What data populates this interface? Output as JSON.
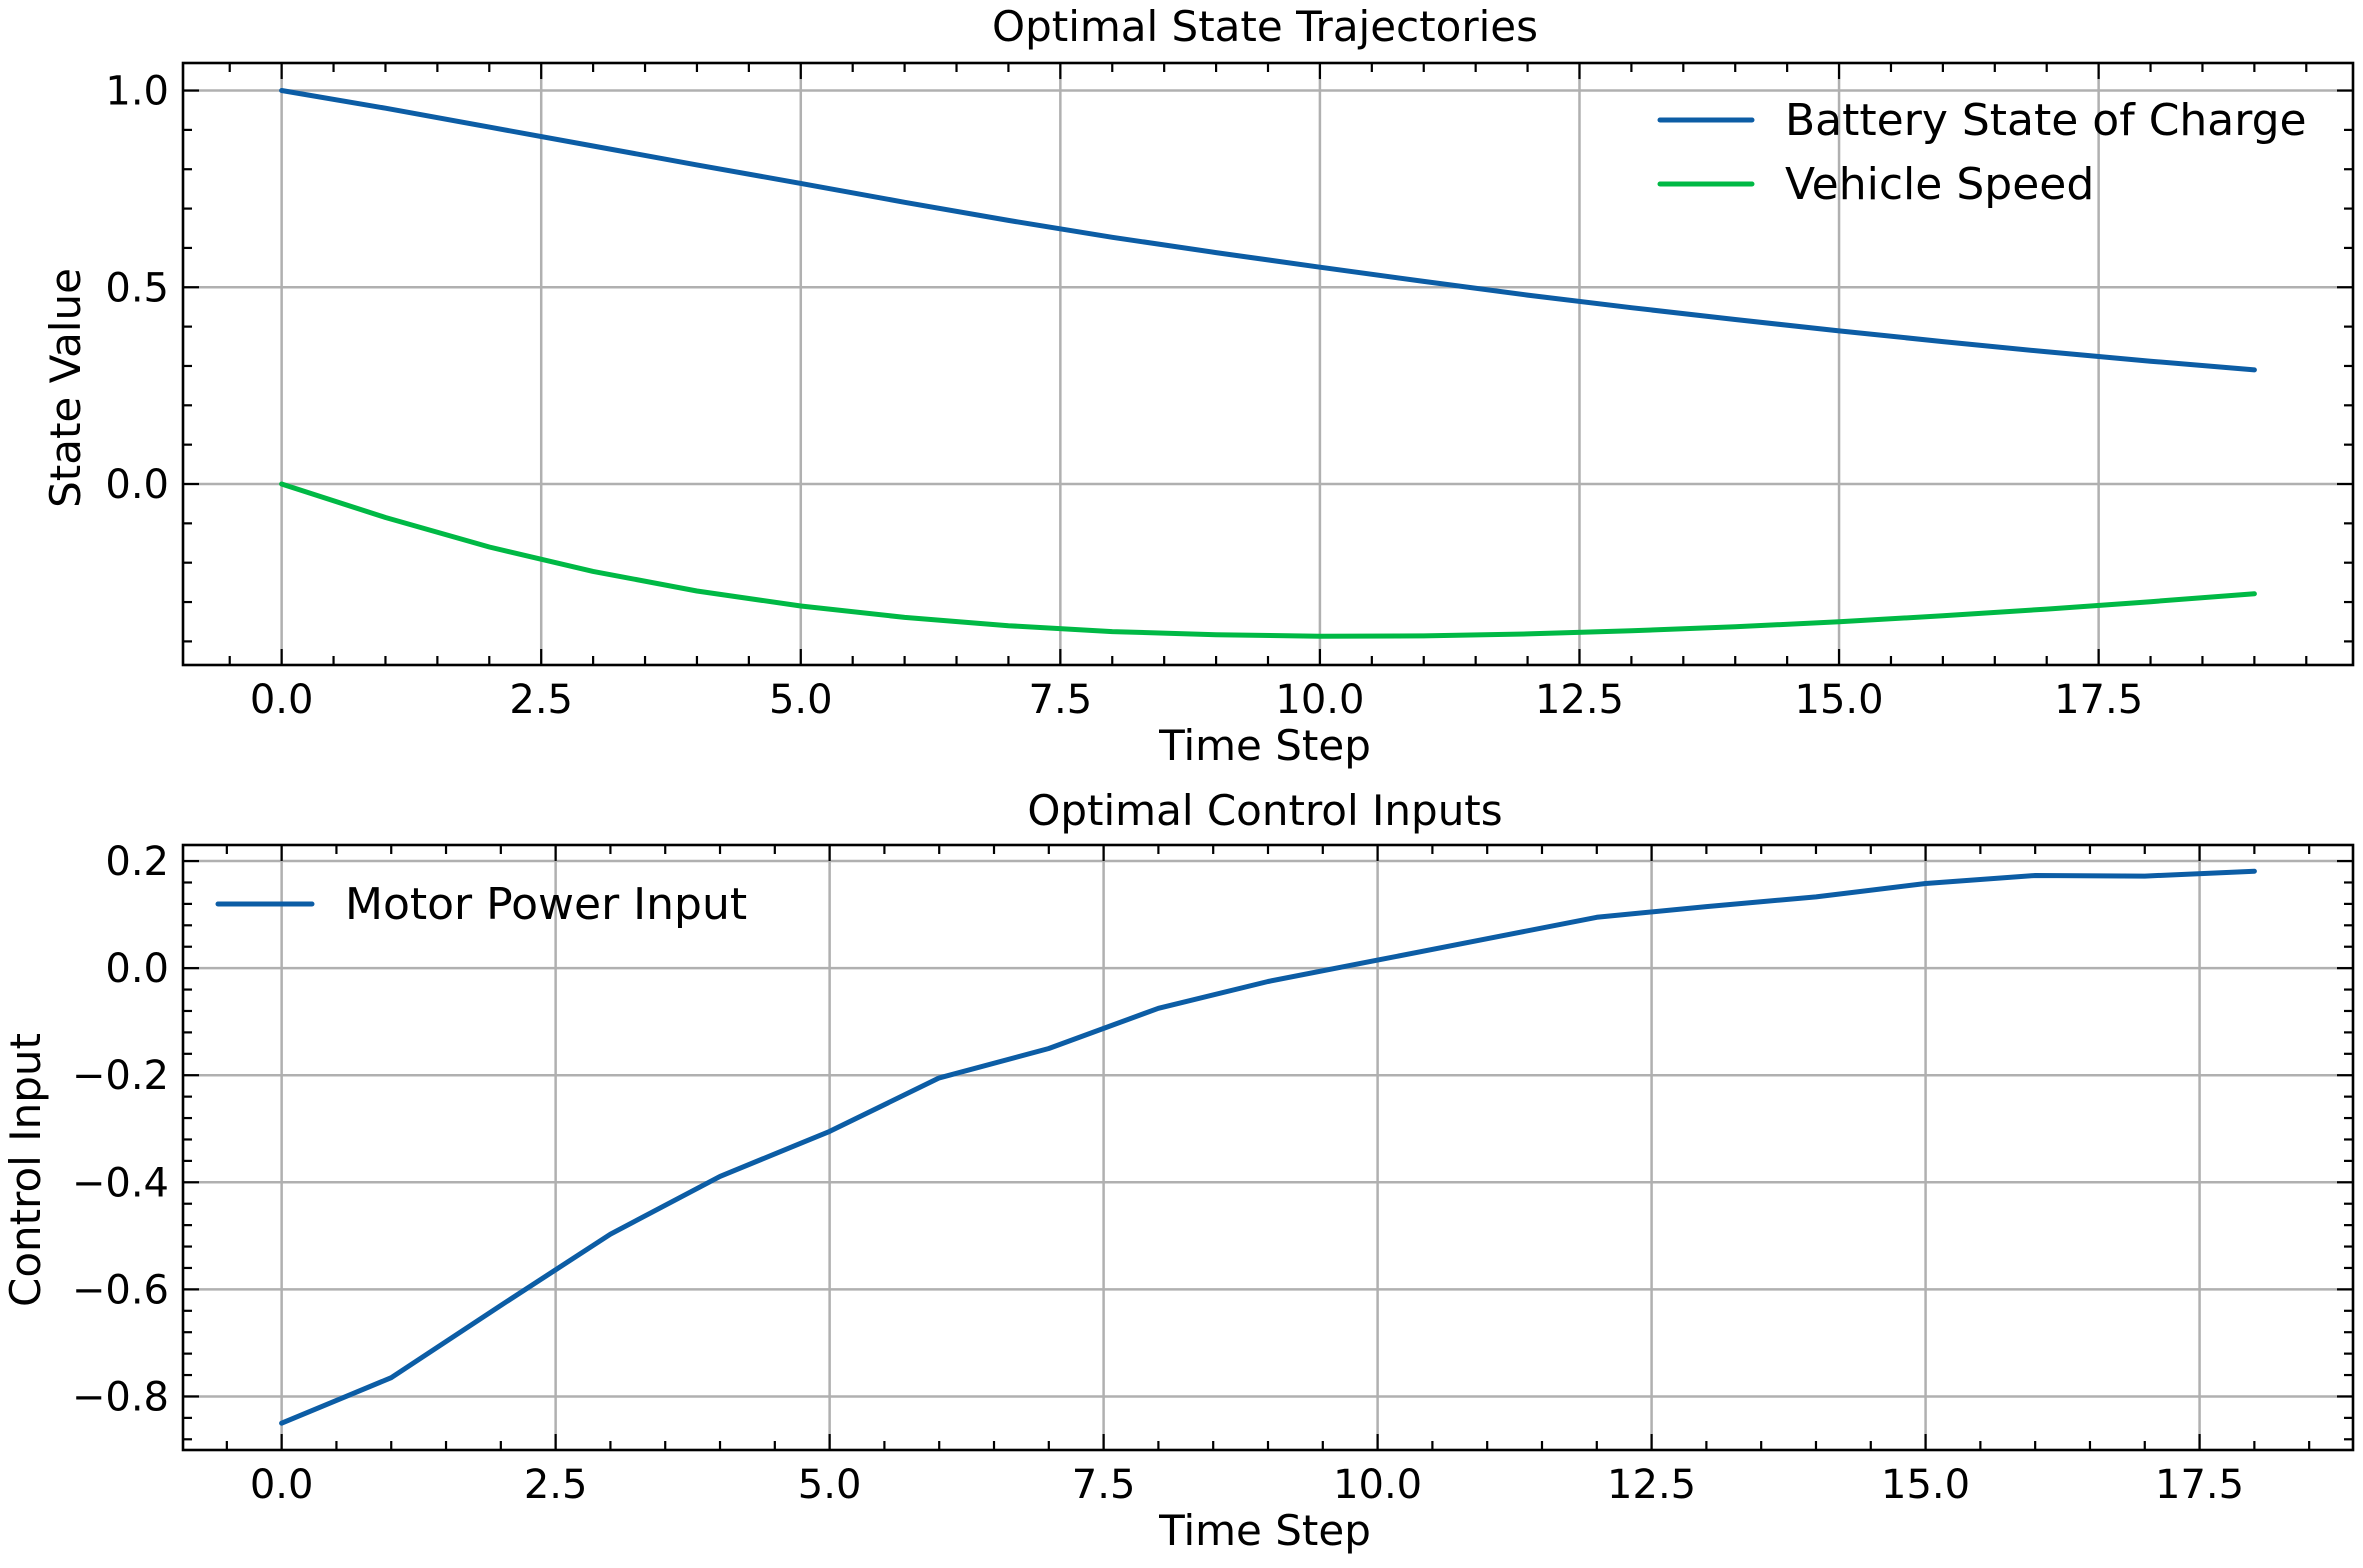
{
  "chart_data": [
    {
      "type": "line",
      "title": "Optimal State Trajectories",
      "xlabel": "Time Step",
      "ylabel": "State Value",
      "xlim": [
        -0.95,
        19.95
      ],
      "ylim": [
        -0.46,
        1.07
      ],
      "xticks": [
        0.0,
        2.5,
        5.0,
        7.5,
        10.0,
        12.5,
        15.0,
        17.5
      ],
      "xtick_labels": [
        "0.0",
        "2.5",
        "5.0",
        "7.5",
        "10.0",
        "12.5",
        "15.0",
        "17.5"
      ],
      "yticks": [
        0.0,
        0.5,
        1.0
      ],
      "ytick_labels": [
        "0.0",
        "0.5",
        "1.0"
      ],
      "grid": true,
      "legend_position": "top-right",
      "x": [
        0,
        1,
        2,
        3,
        4,
        5,
        6,
        7,
        8,
        9,
        10,
        11,
        12,
        13,
        14,
        15,
        16,
        17,
        18,
        19
      ],
      "series": [
        {
          "name": "Battery State of Charge",
          "color": "#0C5DA5",
          "values": [
            1.0,
            0.955,
            0.907,
            0.859,
            0.811,
            0.764,
            0.716,
            0.67,
            0.627,
            0.588,
            0.551,
            0.515,
            0.48,
            0.448,
            0.418,
            0.389,
            0.362,
            0.336,
            0.312,
            0.29
          ]
        },
        {
          "name": "Vehicle Speed",
          "color": "#00B945",
          "values": [
            0.0,
            -0.085,
            -0.16,
            -0.222,
            -0.272,
            -0.31,
            -0.339,
            -0.36,
            -0.375,
            -0.383,
            -0.387,
            -0.386,
            -0.381,
            -0.373,
            -0.363,
            -0.35,
            -0.335,
            -0.318,
            -0.299,
            -0.279
          ]
        }
      ]
    },
    {
      "type": "line",
      "title": "Optimal Control Inputs",
      "xlabel": "Time Step",
      "ylabel": "Control Input",
      "xlim": [
        -0.9,
        18.9
      ],
      "ylim": [
        -0.9,
        0.23
      ],
      "xticks": [
        0.0,
        2.5,
        5.0,
        7.5,
        10.0,
        12.5,
        15.0,
        17.5
      ],
      "xtick_labels": [
        "0.0",
        "2.5",
        "5.0",
        "7.5",
        "10.0",
        "12.5",
        "15.0",
        "17.5"
      ],
      "yticks": [
        -0.8,
        -0.6,
        -0.4,
        -0.2,
        0.0,
        0.2
      ],
      "ytick_labels": [
        "−0.8",
        "−0.6",
        "−0.4",
        "−0.2",
        "0.0",
        "0.2"
      ],
      "grid": true,
      "legend_position": "top-left",
      "x": [
        0,
        1,
        2,
        3,
        4,
        5,
        6,
        7,
        8,
        9,
        10,
        11,
        12,
        13,
        14,
        15,
        16,
        17,
        18
      ],
      "series": [
        {
          "name": "Motor Power Input",
          "color": "#0C5DA5",
          "values": [
            -0.85,
            -0.765,
            -0.63,
            -0.497,
            -0.389,
            -0.305,
            -0.205,
            -0.15,
            -0.075,
            -0.025,
            0.015,
            0.055,
            0.095,
            0.115,
            0.133,
            0.158,
            0.173,
            0.172,
            0.181
          ]
        }
      ]
    }
  ]
}
